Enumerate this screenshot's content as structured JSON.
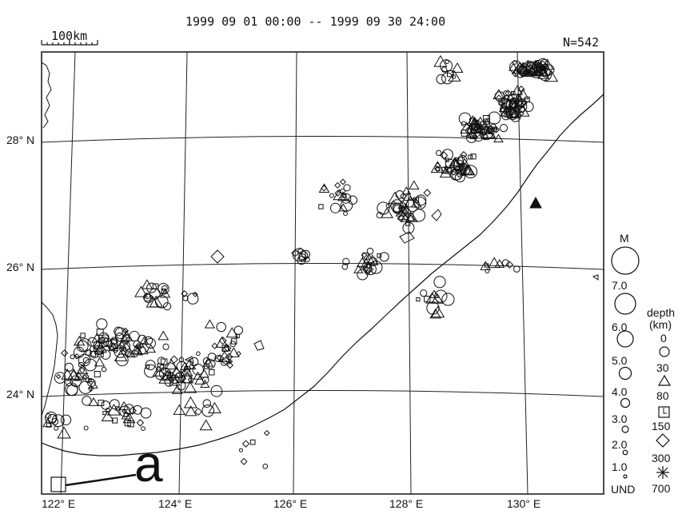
{
  "header": {
    "title": "1999 09 01 00:00 -- 1999 09 30 24:00",
    "count": "N=542"
  },
  "scale_bar": {
    "label": "100km"
  },
  "lat_labels": [
    "28° N",
    "26° N",
    "24° N"
  ],
  "lon_labels": [
    "122° E",
    "124° E",
    "126° E",
    "128° E",
    "130° E"
  ],
  "annotation": {
    "label": "a"
  },
  "legend": {
    "magnitude_title": "M",
    "magnitudes": [
      "7.0",
      "6.0",
      "5.0",
      "4.0",
      "3.0",
      "2.0",
      "1.0",
      "UND"
    ],
    "depth_title": "depth",
    "depth_unit": "(km)",
    "depths": [
      "0",
      "30",
      "80",
      "150",
      "300",
      "700"
    ]
  }
}
